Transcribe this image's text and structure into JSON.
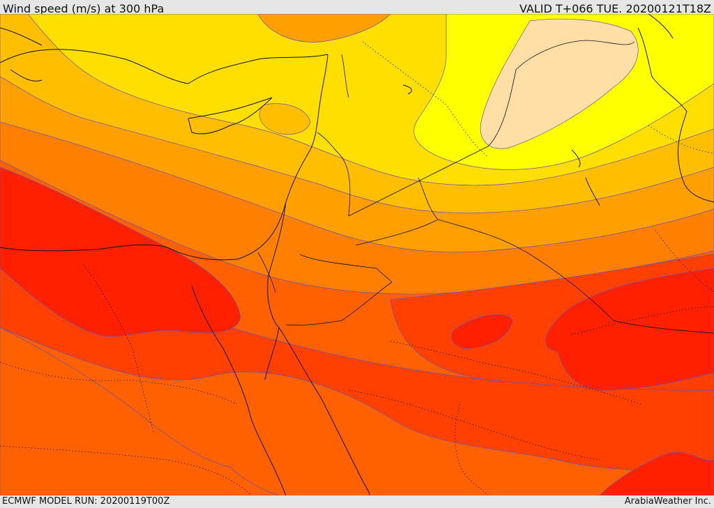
{
  "header": {
    "title": "Wind speed (m/s) at 300 hPa",
    "valid": "VALID T+066 TUE. 20200121T18Z"
  },
  "footer": {
    "model_run": "ECMWF MODEL RUN: 20200119T00Z",
    "provider": "ArabiaWeather Inc."
  },
  "map": {
    "field": "wind-speed-300hPa",
    "palette": [
      "#ffdfa6",
      "#ffff00",
      "#ffdf00",
      "#ffbf00",
      "#ff9f00",
      "#ff8000",
      "#ff6000",
      "#ff4000",
      "#ff2000"
    ]
  }
}
